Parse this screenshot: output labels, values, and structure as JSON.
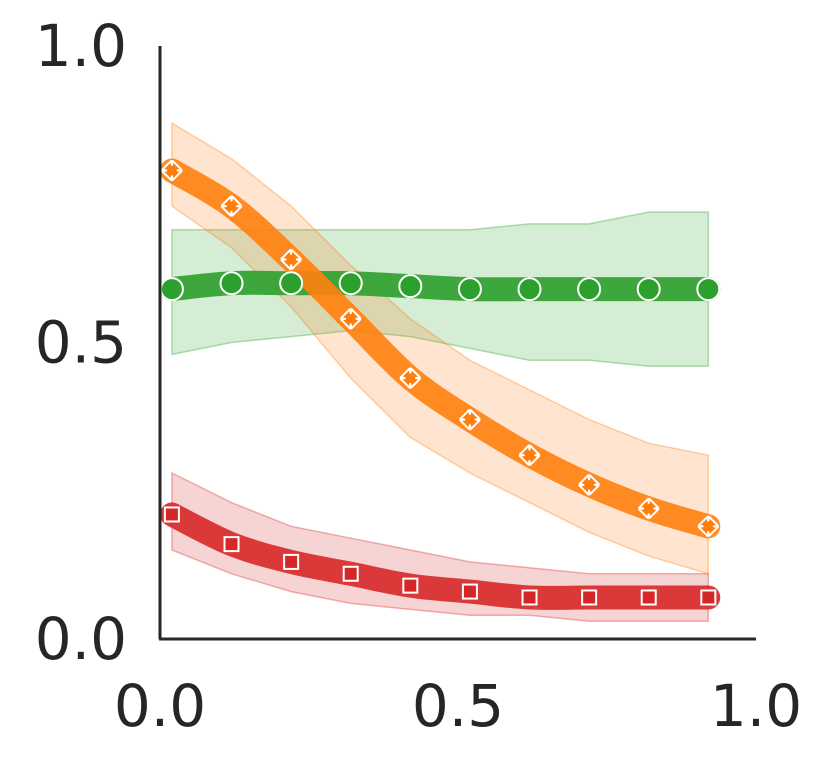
{
  "chart_data": {
    "type": "line",
    "title": "",
    "xlabel": "",
    "ylabel": "",
    "xlim": [
      0.0,
      1.0
    ],
    "ylim": [
      0.0,
      1.0
    ],
    "xticks": [
      "0.0",
      "0.5",
      "1.0"
    ],
    "yticks": [
      "0.0",
      "0.5",
      "1.0"
    ],
    "grid": false,
    "legend": "none",
    "x": [
      0.02,
      0.12,
      0.22,
      0.32,
      0.42,
      0.52,
      0.62,
      0.72,
      0.82,
      0.92
    ],
    "series": [
      {
        "color": "#2ca02c",
        "marker": "circle",
        "values": [
          0.59,
          0.6,
          0.6,
          0.6,
          0.595,
          0.59,
          0.59,
          0.59,
          0.59,
          0.59
        ],
        "lower": [
          0.48,
          0.5,
          0.51,
          0.52,
          0.51,
          0.49,
          0.47,
          0.47,
          0.46,
          0.46
        ],
        "upper": [
          0.69,
          0.69,
          0.69,
          0.69,
          0.69,
          0.69,
          0.7,
          0.7,
          0.72,
          0.72
        ]
      },
      {
        "color": "#ff7f0e",
        "marker": "x",
        "values": [
          0.79,
          0.73,
          0.64,
          0.54,
          0.44,
          0.37,
          0.31,
          0.26,
          0.22,
          0.19
        ],
        "lower": [
          0.73,
          0.66,
          0.56,
          0.44,
          0.34,
          0.28,
          0.23,
          0.18,
          0.14,
          0.11
        ],
        "upper": [
          0.87,
          0.81,
          0.73,
          0.63,
          0.54,
          0.47,
          0.42,
          0.37,
          0.33,
          0.31
        ]
      },
      {
        "color": "#d62728",
        "marker": "square",
        "values": [
          0.21,
          0.16,
          0.13,
          0.11,
          0.09,
          0.08,
          0.07,
          0.07,
          0.07,
          0.07
        ],
        "lower": [
          0.15,
          0.11,
          0.08,
          0.06,
          0.05,
          0.04,
          0.04,
          0.03,
          0.03,
          0.03
        ],
        "upper": [
          0.28,
          0.23,
          0.19,
          0.17,
          0.15,
          0.13,
          0.12,
          0.11,
          0.11,
          0.11
        ]
      }
    ]
  }
}
